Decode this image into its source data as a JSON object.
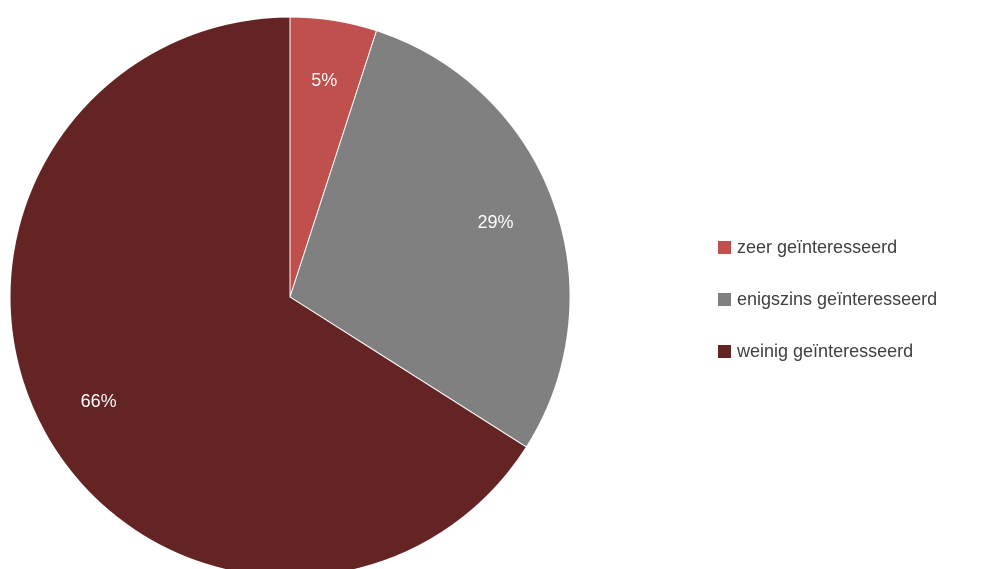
{
  "chart_data": {
    "type": "pie",
    "title": "",
    "start_angle_deg": 0,
    "direction": "clockwise",
    "legend_position": "right",
    "slices": [
      {
        "label": "zeer geïnteresseerd",
        "value": 5,
        "display": "5%",
        "color": "#C0504D"
      },
      {
        "label": "enigszins geïnteresseerd",
        "value": 29,
        "display": "29%",
        "color": "#808080"
      },
      {
        "label": "weinig geïnteresseerd",
        "value": 66,
        "display": "66%",
        "color": "#632423"
      }
    ]
  }
}
